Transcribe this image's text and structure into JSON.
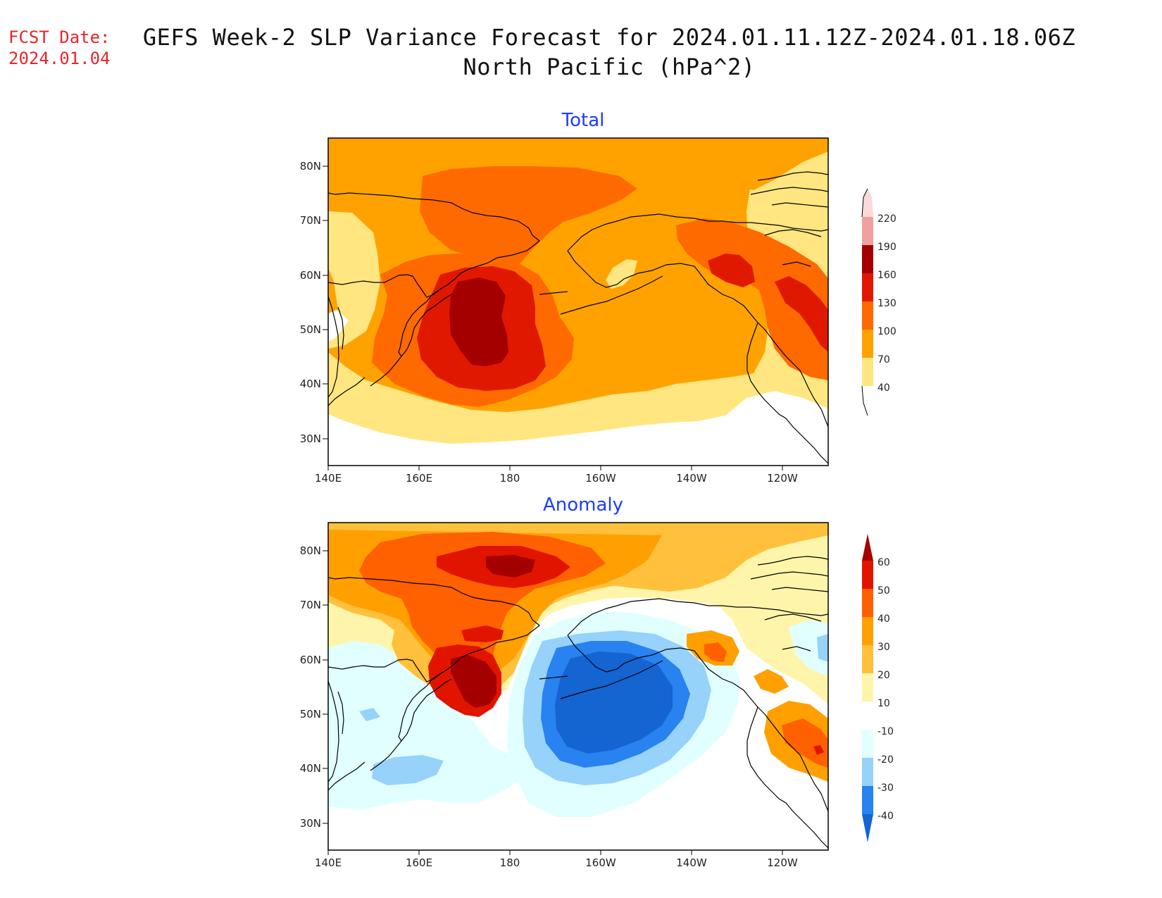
{
  "header": {
    "fcst_label": "FCST Date:",
    "fcst_date": "2024.01.04",
    "title_line1": "GEFS Week-2 SLP Variance Forecast for 2024.01.11.12Z-2024.01.18.06Z",
    "title_line2": "North Pacific (hPa^2)"
  },
  "axes": {
    "lat_ticks": [
      "80N",
      "70N",
      "60N",
      "50N",
      "40N",
      "30N"
    ],
    "lon_ticks": [
      "140E",
      "160E",
      "180",
      "160W",
      "140W",
      "120W"
    ]
  },
  "panels": [
    {
      "title": "Total",
      "colorbar": {
        "levels": [
          "40",
          "70",
          "100",
          "130",
          "160",
          "190",
          "220"
        ],
        "colors": [
          "#ffe680",
          "#ffa200",
          "#ff6a00",
          "#e11800",
          "#a50000",
          "#f0a0a0",
          "#fcd8d8"
        ]
      }
    },
    {
      "title": "Anomaly",
      "colorbar": {
        "levels": [
          "-40",
          "-30",
          "-20",
          "-10",
          "10",
          "20",
          "30",
          "40",
          "50",
          "60"
        ],
        "colors": [
          "#1464d2",
          "#2882f0",
          "#96d2fa",
          "#e1ffff",
          "#ffffff",
          "#fff5aa",
          "#ffc03c",
          "#ffa000",
          "#ff6000",
          "#e11400",
          "#a50000"
        ]
      }
    }
  ],
  "chart_data": [
    {
      "type": "heatmap",
      "title": "Total",
      "x_range": [
        "140E",
        "110W"
      ],
      "y_range": [
        "25N",
        "85N"
      ],
      "levels": [
        40,
        70,
        100,
        130,
        160,
        190,
        220
      ],
      "features": [
        {
          "name": "max over Kamchatka / Bering Sea",
          "level": 160
        },
        {
          "name": "max over Gulf of Alaska / Pacific NW",
          "level": 130
        }
      ]
    },
    {
      "type": "heatmap",
      "title": "Anomaly",
      "x_range": [
        "140E",
        "110W"
      ],
      "y_range": [
        "25N",
        "85N"
      ],
      "levels": [
        -40,
        -30,
        -20,
        -10,
        10,
        20,
        30,
        40,
        50,
        60
      ],
      "features": [
        {
          "name": "positive max over Kamchatka",
          "level": 50
        },
        {
          "name": "positive max over Arctic",
          "level": 50
        },
        {
          "name": "negative min over Gulf of Alaska",
          "level": -40
        },
        {
          "name": "positive max off Pacific NW coast",
          "level": 40
        }
      ]
    }
  ]
}
